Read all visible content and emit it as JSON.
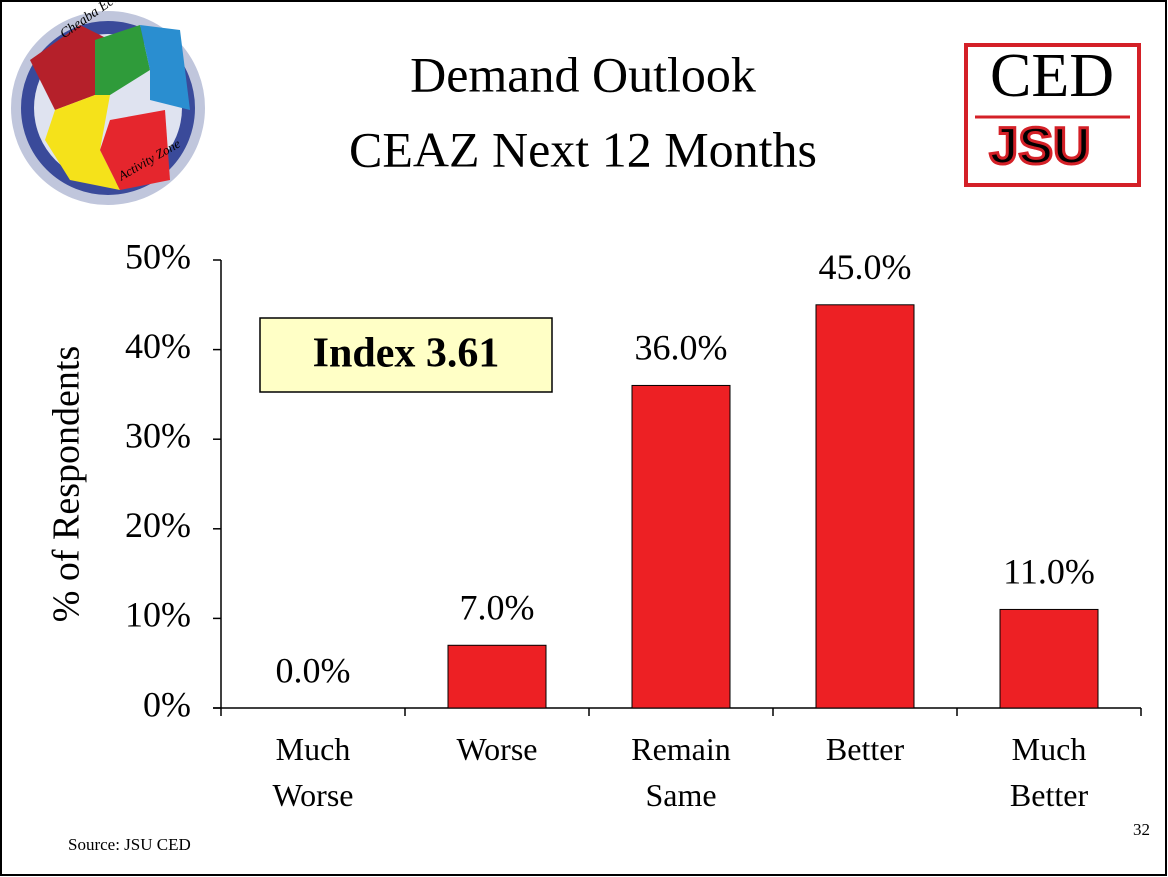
{
  "chart_data": {
    "type": "bar",
    "title": [
      "Demand Outlook",
      "CEAZ Next 12 Months"
    ],
    "y_label": "% of Respondents",
    "annotation": "Index 3.61",
    "source": "Source: JSU CED",
    "page_number": "32",
    "logos": {
      "left": [
        "Cheaba Economic",
        "Activity Zone"
      ],
      "right": [
        "CED",
        "JSU"
      ]
    },
    "categories": [
      "Much Worse",
      "Worse",
      "Remain Same",
      "Better",
      "Much Better"
    ],
    "values": [
      0,
      7,
      36,
      45,
      11
    ],
    "value_labels": [
      "0.0%",
      "7.0%",
      "36.0%",
      "45.0%",
      "11.0%"
    ],
    "color": "#ed2024",
    "ylim": [
      0,
      50
    ],
    "yticks": [
      {
        "value": 0,
        "label": "0%"
      },
      {
        "value": 10,
        "label": "10%"
      },
      {
        "value": 20,
        "label": "20%"
      },
      {
        "value": 30,
        "label": "30%"
      },
      {
        "value": 40,
        "label": "40%"
      },
      {
        "value": 50,
        "label": "50%"
      }
    ],
    "grid": false
  }
}
